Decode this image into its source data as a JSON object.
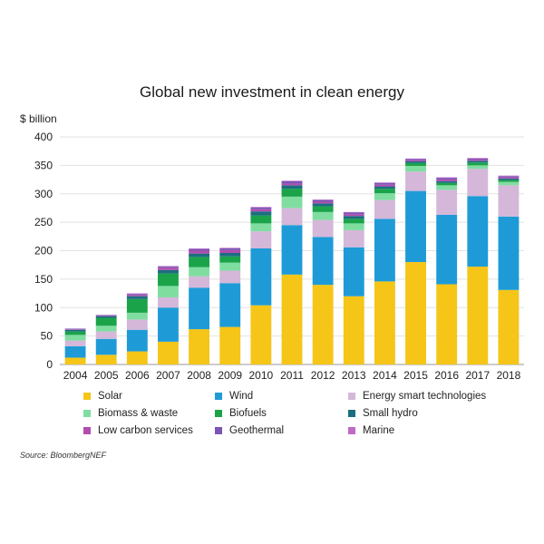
{
  "chart_data": {
    "type": "stacked-bar",
    "title": "Global new investment in clean energy",
    "ylabel": "$ billion",
    "xlabel": "",
    "ylim": [
      0,
      400
    ],
    "yticks": [
      0,
      50,
      100,
      150,
      200,
      250,
      300,
      350,
      400
    ],
    "grid": true,
    "legend_position": "bottom",
    "source": "Source: BloombergNEF",
    "categories": [
      "2004",
      "2005",
      "2006",
      "2007",
      "2008",
      "2009",
      "2010",
      "2011",
      "2012",
      "2013",
      "2014",
      "2015",
      "2016",
      "2017",
      "2018"
    ],
    "series": [
      {
        "name": "Solar",
        "color": "#F5C518",
        "values": [
          12,
          17,
          23,
          40,
          62,
          66,
          104,
          158,
          140,
          120,
          146,
          180,
          141,
          172,
          131
        ]
      },
      {
        "name": "Wind",
        "color": "#1E9BD7",
        "values": [
          20,
          28,
          38,
          60,
          73,
          77,
          100,
          87,
          84,
          86,
          110,
          125,
          122,
          124,
          129
        ]
      },
      {
        "name": "Energy smart technologies",
        "color": "#D4B7D9",
        "values": [
          10,
          13,
          18,
          18,
          20,
          22,
          30,
          30,
          30,
          30,
          33,
          34,
          44,
          48,
          55
        ]
      },
      {
        "name": "Biomass & waste",
        "color": "#7FDDA0",
        "values": [
          10,
          10,
          12,
          20,
          16,
          14,
          14,
          20,
          14,
          12,
          12,
          10,
          8,
          6,
          6
        ]
      },
      {
        "name": "Biofuels",
        "color": "#1BA34A",
        "values": [
          6,
          14,
          24,
          22,
          18,
          11,
          14,
          14,
          10,
          8,
          8,
          5,
          4,
          5,
          3
        ]
      },
      {
        "name": "Small hydro",
        "color": "#1B6E80",
        "values": [
          3,
          3,
          5,
          6,
          6,
          6,
          7,
          6,
          5,
          5,
          4,
          3,
          3,
          3,
          3
        ]
      },
      {
        "name": "Low carbon services",
        "color": "#B24DAF",
        "values": [
          1,
          1,
          2,
          4,
          5,
          5,
          4,
          3,
          3,
          3,
          3,
          2,
          3,
          2,
          2
        ]
      },
      {
        "name": "Geothermal",
        "color": "#7A55B5",
        "values": [
          1,
          1,
          2,
          2,
          3,
          3,
          3,
          4,
          3,
          3,
          3,
          2,
          3,
          2,
          2
        ]
      },
      {
        "name": "Marine",
        "color": "#C069C8",
        "values": [
          0,
          0,
          1,
          1,
          1,
          1,
          1,
          1,
          1,
          1,
          1,
          1,
          1,
          1,
          1
        ]
      }
    ]
  }
}
